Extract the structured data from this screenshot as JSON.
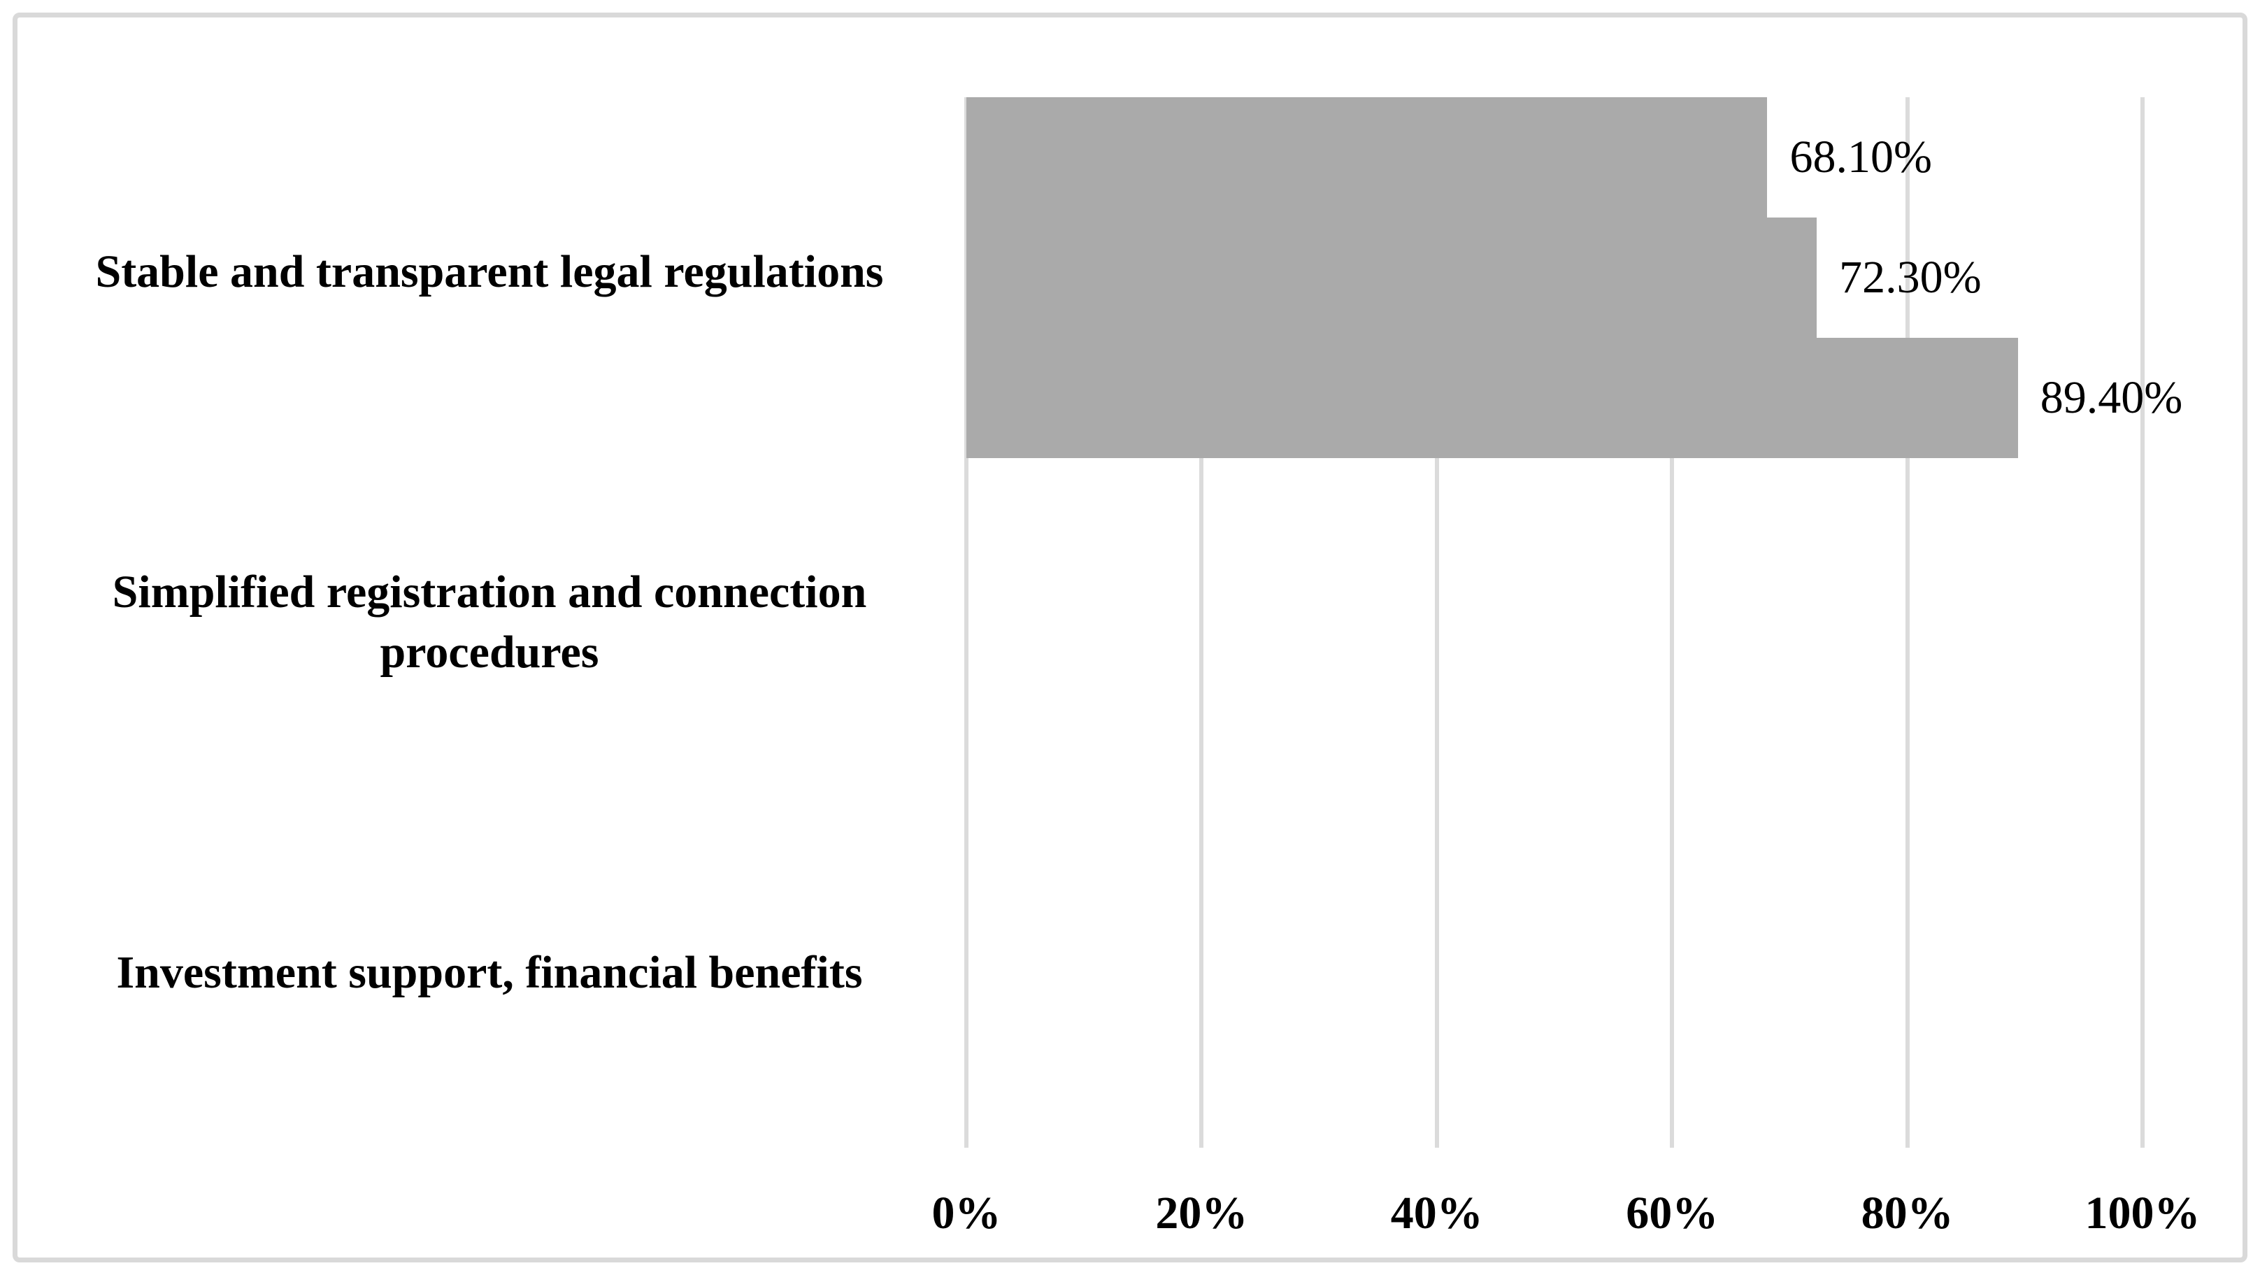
{
  "figure": {
    "title": "",
    "legend": "none"
  },
  "colors": {
    "bar_fill": "#AAAAAA",
    "gridline": "#DBDBDB",
    "frame_border": "#D9D9D9",
    "text": "#000000",
    "background": "#FFFFFF"
  },
  "chart_data": {
    "type": "bar",
    "orientation": "horizontal",
    "title": "",
    "xlabel": "",
    "ylabel": "",
    "xlim": [
      0,
      100
    ],
    "grid": "vertical gridlines every 20%",
    "legend_position": "none",
    "categories": [
      "Stable and transparent legal regulations",
      "Simplified registration and connection\nprocedures",
      "Investment support, financial benefits"
    ],
    "values": [
      68.1,
      72.3,
      89.4
    ],
    "value_labels": [
      "68.10%",
      "72.30%",
      "89.40%"
    ],
    "x_ticks": [
      {
        "value": 0,
        "label": "0%"
      },
      {
        "value": 20,
        "label": "20%"
      },
      {
        "value": 40,
        "label": "40%"
      },
      {
        "value": 60,
        "label": "60%"
      },
      {
        "value": 80,
        "label": "80%"
      },
      {
        "value": 100,
        "label": "100%"
      }
    ]
  }
}
